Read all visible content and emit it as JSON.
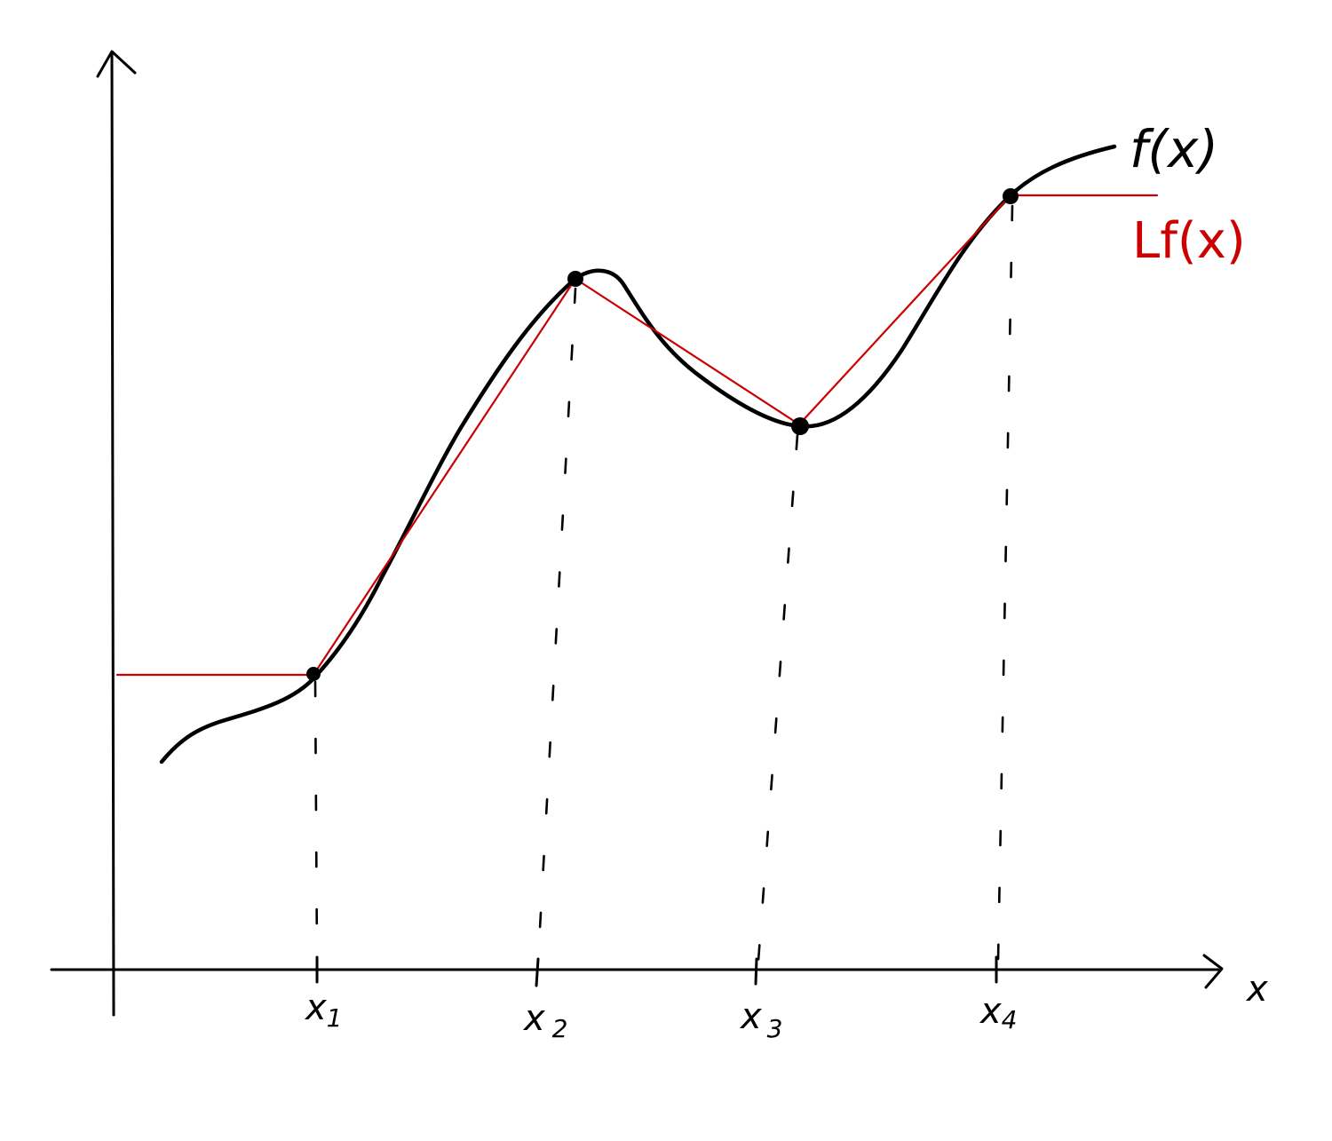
{
  "figure": {
    "curve_label": "f(x)",
    "interp_label": "Lf(x)",
    "x_axis_label": "x",
    "nodes": [
      {
        "label": "x",
        "sub": "1"
      },
      {
        "label": "x",
        "sub": "2"
      },
      {
        "label": "x",
        "sub": "3"
      },
      {
        "label": "x",
        "sub": "4"
      }
    ],
    "colors": {
      "curve": "#000000",
      "interpolant": "#cc0000"
    }
  }
}
